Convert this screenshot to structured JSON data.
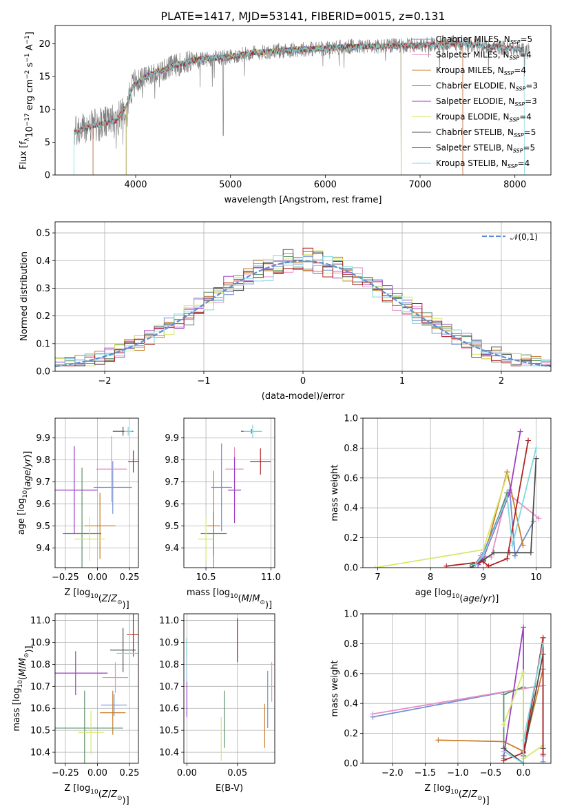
{
  "title": "PLATE=1417, MJD=53141, FIBERID=0015, z=0.131",
  "colors": {
    "Chabrier MILES": "#6f8fd6",
    "Salpeter MILES": "#e88fc4",
    "Kroupa MILES": "#c97b2a",
    "Chabrier ELODIE": "#5b8f68",
    "Salpeter ELODIE": "#9b3fc4",
    "Kroupa ELODIE": "#d6e86a",
    "Chabrier STELIB": "#4d4d4d",
    "Salpeter STELIB": "#b22222",
    "Kroupa STELIB": "#7dd9dd",
    "data": "#808080",
    "gaussian": "#5f8dd3"
  },
  "chart_data": [
    {
      "type": "line",
      "title": "PLATE=1417, MJD=53141, FIBERID=0015, z=0.131",
      "xlabel": "wavelength [Angstrom, rest frame]",
      "ylabel": "Flux [f_λ 10^-17 erg cm^-2 s^-1 A^-1]",
      "xlim": [
        3150,
        8380
      ],
      "ylim": [
        0,
        22.8
      ],
      "xticks": [
        4000,
        5000,
        6000,
        7000,
        8000
      ],
      "yticks": [
        0,
        5,
        10,
        15,
        20
      ],
      "legend": [
        "Chabrier MILES, N_SSP=5",
        "Salpeter MILES, N_SSP=4",
        "Kroupa MILES, N_SSP=4",
        "Chabrier ELODIE, N_SSP=3",
        "Salpeter ELODIE, N_SSP=3",
        "Kroupa ELODIE, N_SSP=4",
        "Chabrier STELIB, N_SSP=5",
        "Salpeter STELIB, N_SSP=5",
        "Kroupa STELIB, N_SSP=4"
      ],
      "legend_position": "right",
      "continuum": {
        "x": [
          3350,
          3500,
          3650,
          3800,
          3900,
          3950,
          4000,
          4100,
          4200,
          4300,
          4400,
          4500,
          4600,
          4800,
          5000,
          5200,
          5400,
          5600,
          5800,
          6000,
          6200,
          6400,
          6600,
          6800,
          7000,
          7200,
          7400,
          7600,
          7800,
          8000,
          8150
        ],
        "y": [
          6.5,
          7.3,
          7.8,
          8.3,
          10.5,
          13.0,
          14.0,
          15.0,
          15.7,
          16.0,
          16.7,
          17.0,
          17.5,
          17.8,
          18.0,
          18.6,
          18.8,
          19.0,
          19.2,
          19.3,
          19.5,
          19.6,
          19.6,
          19.7,
          19.8,
          19.9,
          20.0,
          19.8,
          19.5,
          19.2,
          19.0
        ]
      },
      "data_range_x": [
        3350,
        8150
      ],
      "model_ranges_x": {
        "MILES": [
          3550,
          7450
        ],
        "ELODIE": [
          3900,
          6800
        ],
        "STELIB": [
          3350,
          8100
        ]
      }
    },
    {
      "type": "bar",
      "xlabel": "(data-model)/error",
      "ylabel": "Normed distribution",
      "xlim": [
        -2.5,
        2.5
      ],
      "ylim": [
        0,
        0.54
      ],
      "xticks": [
        -2,
        -1,
        0,
        1,
        2
      ],
      "yticks": [
        0.0,
        0.1,
        0.2,
        0.3,
        0.4,
        0.5
      ],
      "legend": [
        "𝒩(0,1)"
      ],
      "legend_position": "top-right",
      "bin_width": 0.1
    },
    {
      "type": "scatter",
      "xlabel": "Z [log10(Z/Z_⊙)]",
      "ylabel": "age [log10(age/yr)]",
      "xlim": [
        -0.33,
        0.32
      ],
      "ylim": [
        9.31,
        9.99
      ],
      "xticks": [
        -0.25,
        0.0,
        0.25
      ],
      "yticks": [
        9.4,
        9.5,
        9.6,
        9.7,
        9.8,
        9.9
      ],
      "points": [
        {
          "model": "Chabrier MILES",
          "x": 0.12,
          "y": 9.675,
          "ex": 0.15,
          "ey": 0.12
        },
        {
          "model": "Salpeter MILES",
          "x": 0.11,
          "y": 9.758,
          "ex": 0.12,
          "ey": 0.15
        },
        {
          "model": "Kroupa MILES",
          "x": 0.02,
          "y": 9.5,
          "ex": 0.12,
          "ey": 0.15
        },
        {
          "model": "Chabrier ELODIE",
          "x": -0.12,
          "y": 9.465,
          "ex": 0.15,
          "ey": 0.3
        },
        {
          "model": "Salpeter ELODIE",
          "x": -0.18,
          "y": 9.663,
          "ex": 0.18,
          "ey": 0.2
        },
        {
          "model": "Kroupa ELODIE",
          "x": -0.06,
          "y": 9.44,
          "ex": 0.12,
          "ey": 0.1
        },
        {
          "model": "Chabrier STELIB",
          "x": 0.2,
          "y": 9.93,
          "ex": 0.08,
          "ey": 0.02
        },
        {
          "model": "Salpeter STELIB",
          "x": 0.28,
          "y": 9.793,
          "ex": 0.04,
          "ey": 0.05
        },
        {
          "model": "Kroupa STELIB",
          "x": 0.24,
          "y": 9.93,
          "ex": 0.03,
          "ey": 0.02
        }
      ]
    },
    {
      "type": "scatter",
      "xlabel": "mass [log10(M/M_⊙)]",
      "ylabel": "",
      "xlim": [
        10.33,
        11.03
      ],
      "ylim": [
        9.31,
        9.99
      ],
      "xticks": [
        10.5,
        11.0
      ],
      "yticks": [
        9.4,
        9.5,
        9.6,
        9.7,
        9.8,
        9.9
      ],
      "points": [
        {
          "model": "Chabrier MILES",
          "x": 10.62,
          "y": 9.675,
          "ex": 0.08,
          "ey": 0.2
        },
        {
          "model": "Salpeter MILES",
          "x": 10.72,
          "y": 9.758,
          "ex": 0.07,
          "ey": 0.1
        },
        {
          "model": "Kroupa MILES",
          "x": 10.56,
          "y": 9.5,
          "ex": 0.05,
          "ey": 0.25
        },
        {
          "model": "Chabrier ELODIE",
          "x": 10.56,
          "y": 9.465,
          "ex": 0.1,
          "ey": 0.1
        },
        {
          "model": "Salpeter ELODIE",
          "x": 10.72,
          "y": 9.663,
          "ex": 0.05,
          "ey": 0.15
        },
        {
          "model": "Kroupa ELODIE",
          "x": 10.5,
          "y": 9.44,
          "ex": 0.06,
          "ey": 0.1
        },
        {
          "model": "Chabrier STELIB",
          "x": 10.85,
          "y": 9.93,
          "ex": 0.08,
          "ey": 0.01
        },
        {
          "model": "Salpeter STELIB",
          "x": 10.92,
          "y": 9.793,
          "ex": 0.08,
          "ey": 0.06
        },
        {
          "model": "Kroupa STELIB",
          "x": 10.86,
          "y": 9.93,
          "ex": 0.07,
          "ey": 0.03
        }
      ]
    },
    {
      "type": "line",
      "xlabel": "age [log10(age/yr)]",
      "ylabel": "mass weight",
      "xlim": [
        6.72,
        10.28
      ],
      "ylim": [
        0,
        1.0
      ],
      "xticks": [
        7,
        8,
        9,
        10
      ],
      "yticks": [
        0.0,
        0.2,
        0.4,
        0.6,
        0.8,
        1.0
      ],
      "series": [
        {
          "model": "Chabrier MILES",
          "x": [
            8.8,
            9.0,
            9.5,
            9.6,
            9.95
          ],
          "y": [
            0.0,
            0.1,
            0.52,
            0.08,
            0.31
          ]
        },
        {
          "model": "Salpeter MILES",
          "x": [
            8.95,
            9.15,
            9.45,
            10.05
          ],
          "y": [
            0.08,
            0.07,
            0.5,
            0.33
          ]
        },
        {
          "model": "Kroupa MILES",
          "x": [
            8.9,
            9.0,
            9.45,
            9.75
          ],
          "y": [
            0.02,
            0.05,
            0.64,
            0.15
          ]
        },
        {
          "model": "Chabrier ELODIE",
          "x": [
            8.8,
            9.0,
            9.45
          ],
          "y": [
            0.02,
            0.06,
            0.5
          ]
        },
        {
          "model": "Salpeter ELODIE",
          "x": [
            8.9,
            9.0,
            9.5,
            9.7
          ],
          "y": [
            0.02,
            0.07,
            0.5,
            0.91
          ]
        },
        {
          "model": "Kroupa ELODIE",
          "x": [
            6.95,
            9.0,
            9.45
          ],
          "y": [
            0.0,
            0.12,
            0.62
          ]
        },
        {
          "model": "Chabrier STELIB",
          "x": [
            8.75,
            9.0,
            9.2,
            9.5,
            9.9,
            10.0
          ],
          "y": [
            0.0,
            0.05,
            0.1,
            0.1,
            0.1,
            0.73
          ]
        },
        {
          "model": "Salpeter STELIB",
          "x": [
            8.3,
            9.0,
            9.1,
            9.45,
            9.85
          ],
          "y": [
            0.01,
            0.04,
            0.01,
            0.06,
            0.85
          ]
        },
        {
          "model": "Kroupa STELIB",
          "x": [
            8.85,
            9.0,
            9.45,
            9.55,
            10.0
          ],
          "y": [
            0.02,
            0.08,
            0.47,
            0.15,
            0.8
          ]
        }
      ]
    },
    {
      "type": "scatter",
      "xlabel": "Z [log10(Z/Z_⊙)]",
      "ylabel": "mass [log10(M/M_⊙)]",
      "xlim": [
        -0.33,
        0.32
      ],
      "ylim": [
        10.35,
        11.03
      ],
      "xticks": [
        -0.25,
        0.0,
        0.25
      ],
      "yticks": [
        10.4,
        10.5,
        10.6,
        10.7,
        10.8,
        10.9,
        11.0
      ],
      "points": [
        {
          "model": "Chabrier MILES",
          "x": 0.13,
          "y": 10.615,
          "ex": 0.1,
          "ey": 0.05
        },
        {
          "model": "Salpeter MILES",
          "x": 0.14,
          "y": 10.74,
          "ex": 0.1,
          "ey": 0.07
        },
        {
          "model": "Kroupa MILES",
          "x": 0.12,
          "y": 10.58,
          "ex": 0.1,
          "ey": 0.1
        },
        {
          "model": "Chabrier ELODIE",
          "x": -0.1,
          "y": 10.51,
          "ex": 0.3,
          "ey": 0.17
        },
        {
          "model": "Salpeter ELODIE",
          "x": -0.17,
          "y": 10.76,
          "ex": 0.25,
          "ey": 0.1
        },
        {
          "model": "Kroupa ELODIE",
          "x": -0.05,
          "y": 10.49,
          "ex": 0.1,
          "ey": 0.1
        },
        {
          "model": "Chabrier STELIB",
          "x": 0.2,
          "y": 10.865,
          "ex": 0.1,
          "ey": 0.1
        },
        {
          "model": "Salpeter STELIB",
          "x": 0.28,
          "y": 10.935,
          "ex": 0.05,
          "ey": 0.1
        },
        {
          "model": "Kroupa STELIB",
          "x": 0.25,
          "y": 10.85,
          "ex": 0.1,
          "ey": 0.15
        }
      ]
    },
    {
      "type": "scatter",
      "xlabel": "E(B-V)",
      "ylabel": "",
      "xlim": [
        -0.003,
        0.087
      ],
      "ylim": [
        10.35,
        11.03
      ],
      "xticks": [
        0.0,
        0.05
      ],
      "yticks": [
        10.4,
        10.5,
        10.6,
        10.7,
        10.8,
        10.9,
        11.0
      ],
      "points": [
        {
          "model": "Chabrier MILES",
          "x": 0.08,
          "y": 10.64,
          "ex": 0,
          "ey": 0.13
        },
        {
          "model": "Salpeter MILES",
          "x": 0.084,
          "y": 10.72,
          "ex": 0,
          "ey": 0.09
        },
        {
          "model": "Kroupa MILES",
          "x": 0.077,
          "y": 10.52,
          "ex": 0,
          "ey": 0.1
        },
        {
          "model": "Chabrier ELODIE",
          "x": 0.037,
          "y": 10.55,
          "ex": 0,
          "ey": 0.13
        },
        {
          "model": "Salpeter ELODIE",
          "x": 0.0,
          "y": 10.7,
          "ex": 0,
          "ey": 0.14
        },
        {
          "model": "Kroupa ELODIE",
          "x": 0.034,
          "y": 10.46,
          "ex": 0,
          "ey": 0.1
        },
        {
          "model": "Chabrier STELIB",
          "x": 0.0,
          "y": 10.88,
          "ex": 0,
          "ey": 0.04
        },
        {
          "model": "Salpeter STELIB",
          "x": 0.05,
          "y": 10.91,
          "ex": 0,
          "ey": 0.1
        },
        {
          "model": "Kroupa STELIB",
          "x": 0.0,
          "y": 10.82,
          "ex": 0,
          "ey": 0.1
        }
      ]
    },
    {
      "type": "line",
      "xlabel": "Z [log10(Z/Z_⊙)]",
      "ylabel": "mass weight",
      "xlim": [
        -2.45,
        0.42
      ],
      "ylim": [
        0,
        1.0
      ],
      "xticks": [
        -2.0,
        -1.5,
        -1.0,
        -0.5,
        0.0
      ],
      "yticks": [
        0.0,
        0.2,
        0.4,
        0.6,
        0.8,
        1.0
      ],
      "series": [
        {
          "model": "Chabrier MILES",
          "x": [
            -2.3,
            0.0,
            0.3,
            0.3
          ],
          "y": [
            0.31,
            0.5,
            0.52,
            0.01
          ]
        },
        {
          "model": "Salpeter MILES",
          "x": [
            -2.3,
            0.0,
            0.3,
            0.3
          ],
          "y": [
            0.33,
            0.5,
            0.52,
            0.05
          ]
        },
        {
          "model": "Kroupa MILES",
          "x": [
            -1.3,
            -0.3,
            0.0,
            0.3
          ],
          "y": [
            0.155,
            0.145,
            0.08,
            0.63
          ]
        },
        {
          "model": "Chabrier ELODIE",
          "x": [
            -0.3,
            -0.3,
            0.0
          ],
          "y": [
            0.03,
            0.46,
            0.51
          ]
        },
        {
          "model": "Salpeter ELODIE",
          "x": [
            -0.3,
            0.0,
            0.0
          ],
          "y": [
            0.05,
            0.91,
            0.05
          ]
        },
        {
          "model": "Kroupa ELODIE",
          "x": [
            -0.3,
            0.0,
            0.0,
            0.3
          ],
          "y": [
            0.26,
            0.61,
            0.03,
            0.12
          ]
        },
        {
          "model": "Chabrier STELIB",
          "x": [
            -0.3,
            0.0,
            0.0,
            0.3,
            0.3
          ],
          "y": [
            0.1,
            0.0,
            0.05,
            0.73,
            0.1
          ]
        },
        {
          "model": "Salpeter STELIB",
          "x": [
            -0.3,
            0.0,
            0.3,
            0.3
          ],
          "y": [
            0.02,
            0.07,
            0.84,
            0.06
          ]
        },
        {
          "model": "Kroupa STELIB",
          "x": [
            -0.3,
            0.0,
            0.0,
            0.3
          ],
          "y": [
            0.08,
            0.0,
            0.15,
            0.8
          ]
        }
      ]
    }
  ]
}
